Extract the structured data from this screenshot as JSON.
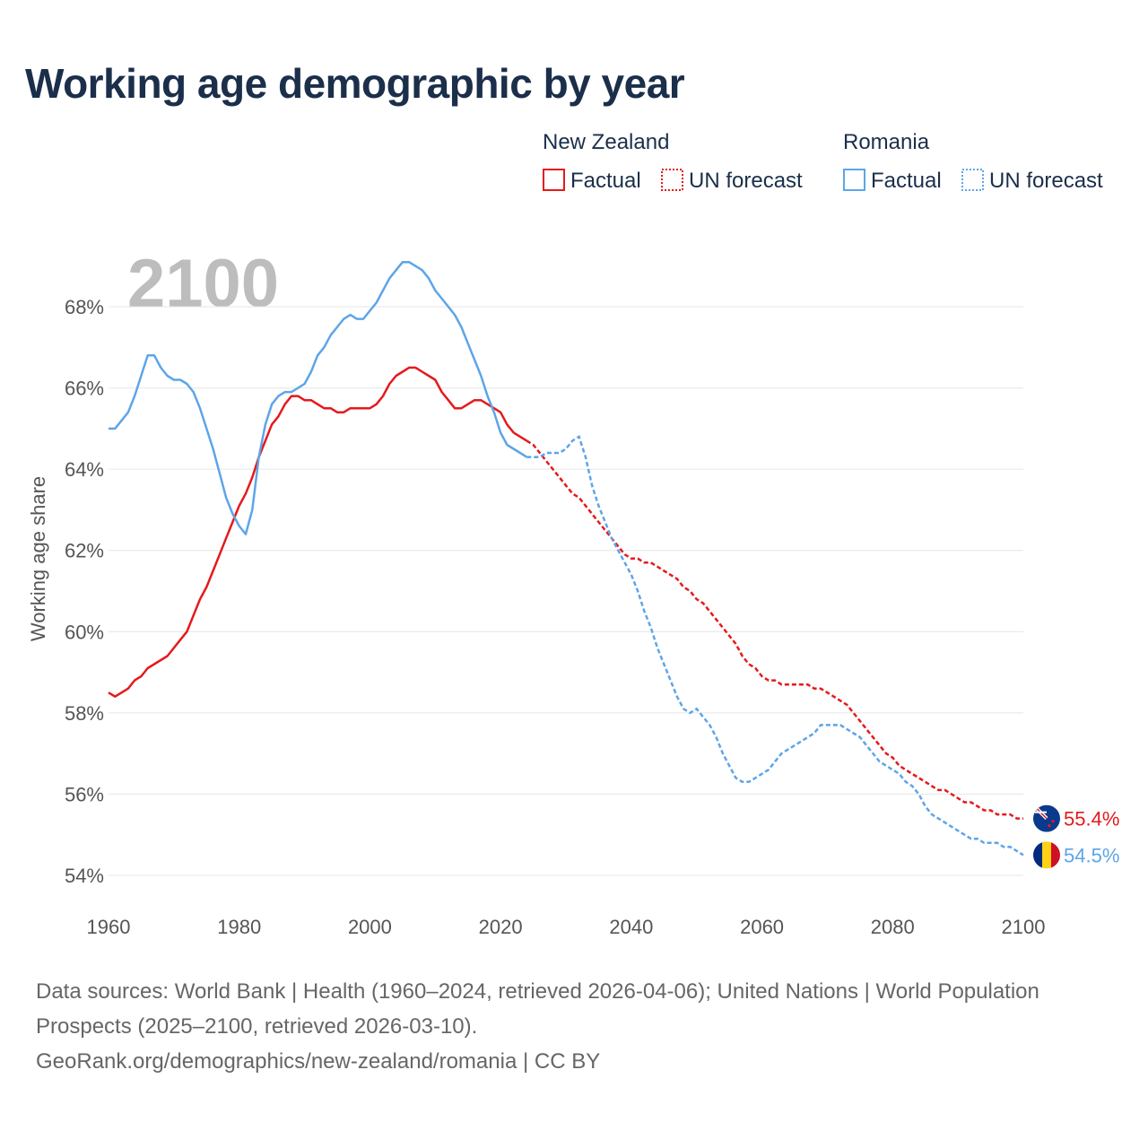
{
  "title": "Working age demographic by year",
  "year_watermark": "2100",
  "footer": {
    "sources": "Data sources: World Bank | Health (1960–2024, retrieved 2026-04-06); United Nations | World Population Prospects (2025–2100, retrieved 2026-03-10).",
    "url": "GeoRank.org/demographics/new-zealand/romania | CC BY"
  },
  "colors": {
    "new_zealand": "#e41a1c",
    "romania": "#5da5e8",
    "grid": "#e6e6e6",
    "watermark": "#bdbdbd"
  },
  "legend": [
    {
      "country": "New Zealand",
      "factual": "Factual",
      "forecast": "UN forecast",
      "color_key": "new_zealand"
    },
    {
      "country": "Romania",
      "factual": "Factual",
      "forecast": "UN forecast",
      "color_key": "romania"
    }
  ],
  "chart_data": {
    "type": "line",
    "title": "Working age demographic by year",
    "xlabel": "",
    "ylabel": "Working age share",
    "xlim": [
      1960,
      2100
    ],
    "ylim": [
      53.5,
      69.5
    ],
    "x_ticks": [
      1960,
      1980,
      2000,
      2020,
      2040,
      2060,
      2080,
      2100
    ],
    "y_ticks": [
      54,
      56,
      58,
      60,
      62,
      64,
      66,
      68
    ],
    "y_tick_labels": [
      "54%",
      "56%",
      "58%",
      "60%",
      "62%",
      "64%",
      "66%",
      "68%"
    ],
    "forecast_start": 2025,
    "series": [
      {
        "name": "New Zealand",
        "color_key": "new_zealand",
        "flag": "new-zealand-flag",
        "end_label": "55.4%",
        "points": [
          [
            1960,
            58.5
          ],
          [
            1961,
            58.4
          ],
          [
            1962,
            58.5
          ],
          [
            1963,
            58.6
          ],
          [
            1964,
            58.8
          ],
          [
            1965,
            58.9
          ],
          [
            1966,
            59.1
          ],
          [
            1967,
            59.2
          ],
          [
            1968,
            59.3
          ],
          [
            1969,
            59.4
          ],
          [
            1970,
            59.6
          ],
          [
            1971,
            59.8
          ],
          [
            1972,
            60.0
          ],
          [
            1973,
            60.4
          ],
          [
            1974,
            60.8
          ],
          [
            1975,
            61.1
          ],
          [
            1976,
            61.5
          ],
          [
            1977,
            61.9
          ],
          [
            1978,
            62.3
          ],
          [
            1979,
            62.7
          ],
          [
            1980,
            63.1
          ],
          [
            1981,
            63.4
          ],
          [
            1982,
            63.8
          ],
          [
            1983,
            64.3
          ],
          [
            1984,
            64.7
          ],
          [
            1985,
            65.1
          ],
          [
            1986,
            65.3
          ],
          [
            1987,
            65.6
          ],
          [
            1988,
            65.8
          ],
          [
            1989,
            65.8
          ],
          [
            1990,
            65.7
          ],
          [
            1991,
            65.7
          ],
          [
            1992,
            65.6
          ],
          [
            1993,
            65.5
          ],
          [
            1994,
            65.5
          ],
          [
            1995,
            65.4
          ],
          [
            1996,
            65.4
          ],
          [
            1997,
            65.5
          ],
          [
            1998,
            65.5
          ],
          [
            1999,
            65.5
          ],
          [
            2000,
            65.5
          ],
          [
            2001,
            65.6
          ],
          [
            2002,
            65.8
          ],
          [
            2003,
            66.1
          ],
          [
            2004,
            66.3
          ],
          [
            2005,
            66.4
          ],
          [
            2006,
            66.5
          ],
          [
            2007,
            66.5
          ],
          [
            2008,
            66.4
          ],
          [
            2009,
            66.3
          ],
          [
            2010,
            66.2
          ],
          [
            2011,
            65.9
          ],
          [
            2012,
            65.7
          ],
          [
            2013,
            65.5
          ],
          [
            2014,
            65.5
          ],
          [
            2015,
            65.6
          ],
          [
            2016,
            65.7
          ],
          [
            2017,
            65.7
          ],
          [
            2018,
            65.6
          ],
          [
            2019,
            65.5
          ],
          [
            2020,
            65.4
          ],
          [
            2021,
            65.1
          ],
          [
            2022,
            64.9
          ],
          [
            2023,
            64.8
          ],
          [
            2024,
            64.7
          ],
          [
            2025,
            64.6
          ],
          [
            2026,
            64.4
          ],
          [
            2027,
            64.2
          ],
          [
            2028,
            64.0
          ],
          [
            2029,
            63.8
          ],
          [
            2030,
            63.6
          ],
          [
            2031,
            63.4
          ],
          [
            2032,
            63.3
          ],
          [
            2033,
            63.1
          ],
          [
            2034,
            62.9
          ],
          [
            2035,
            62.7
          ],
          [
            2036,
            62.5
          ],
          [
            2037,
            62.3
          ],
          [
            2038,
            62.1
          ],
          [
            2039,
            61.9
          ],
          [
            2040,
            61.8
          ],
          [
            2041,
            61.8
          ],
          [
            2042,
            61.7
          ],
          [
            2043,
            61.7
          ],
          [
            2044,
            61.6
          ],
          [
            2045,
            61.5
          ],
          [
            2046,
            61.4
          ],
          [
            2047,
            61.3
          ],
          [
            2048,
            61.1
          ],
          [
            2049,
            61.0
          ],
          [
            2050,
            60.8
          ],
          [
            2051,
            60.7
          ],
          [
            2052,
            60.5
          ],
          [
            2053,
            60.3
          ],
          [
            2054,
            60.1
          ],
          [
            2055,
            59.9
          ],
          [
            2056,
            59.7
          ],
          [
            2057,
            59.4
          ],
          [
            2058,
            59.2
          ],
          [
            2059,
            59.1
          ],
          [
            2060,
            58.9
          ],
          [
            2061,
            58.8
          ],
          [
            2062,
            58.8
          ],
          [
            2063,
            58.7
          ],
          [
            2064,
            58.7
          ],
          [
            2065,
            58.7
          ],
          [
            2066,
            58.7
          ],
          [
            2067,
            58.7
          ],
          [
            2068,
            58.6
          ],
          [
            2069,
            58.6
          ],
          [
            2070,
            58.5
          ],
          [
            2071,
            58.4
          ],
          [
            2072,
            58.3
          ],
          [
            2073,
            58.2
          ],
          [
            2074,
            58.0
          ],
          [
            2075,
            57.8
          ],
          [
            2076,
            57.6
          ],
          [
            2077,
            57.4
          ],
          [
            2078,
            57.2
          ],
          [
            2079,
            57.0
          ],
          [
            2080,
            56.9
          ],
          [
            2081,
            56.7
          ],
          [
            2082,
            56.6
          ],
          [
            2083,
            56.5
          ],
          [
            2084,
            56.4
          ],
          [
            2085,
            56.3
          ],
          [
            2086,
            56.2
          ],
          [
            2087,
            56.1
          ],
          [
            2088,
            56.1
          ],
          [
            2089,
            56.0
          ],
          [
            2090,
            55.9
          ],
          [
            2091,
            55.8
          ],
          [
            2092,
            55.8
          ],
          [
            2093,
            55.7
          ],
          [
            2094,
            55.6
          ],
          [
            2095,
            55.6
          ],
          [
            2096,
            55.5
          ],
          [
            2097,
            55.5
          ],
          [
            2098,
            55.5
          ],
          [
            2099,
            55.4
          ],
          [
            2100,
            55.4
          ]
        ]
      },
      {
        "name": "Romania",
        "color_key": "romania",
        "flag": "romania-flag",
        "end_label": "54.5%",
        "points": [
          [
            1960,
            65.0
          ],
          [
            1961,
            65.0
          ],
          [
            1962,
            65.2
          ],
          [
            1963,
            65.4
          ],
          [
            1964,
            65.8
          ],
          [
            1965,
            66.3
          ],
          [
            1966,
            66.8
          ],
          [
            1967,
            66.8
          ],
          [
            1968,
            66.5
          ],
          [
            1969,
            66.3
          ],
          [
            1970,
            66.2
          ],
          [
            1971,
            66.2
          ],
          [
            1972,
            66.1
          ],
          [
            1973,
            65.9
          ],
          [
            1974,
            65.5
          ],
          [
            1975,
            65.0
          ],
          [
            1976,
            64.5
          ],
          [
            1977,
            63.9
          ],
          [
            1978,
            63.3
          ],
          [
            1979,
            62.9
          ],
          [
            1980,
            62.6
          ],
          [
            1981,
            62.4
          ],
          [
            1982,
            63.0
          ],
          [
            1983,
            64.3
          ],
          [
            1984,
            65.1
          ],
          [
            1985,
            65.6
          ],
          [
            1986,
            65.8
          ],
          [
            1987,
            65.9
          ],
          [
            1988,
            65.9
          ],
          [
            1989,
            66.0
          ],
          [
            1990,
            66.1
          ],
          [
            1991,
            66.4
          ],
          [
            1992,
            66.8
          ],
          [
            1993,
            67.0
          ],
          [
            1994,
            67.3
          ],
          [
            1995,
            67.5
          ],
          [
            1996,
            67.7
          ],
          [
            1997,
            67.8
          ],
          [
            1998,
            67.7
          ],
          [
            1999,
            67.7
          ],
          [
            2000,
            67.9
          ],
          [
            2001,
            68.1
          ],
          [
            2002,
            68.4
          ],
          [
            2003,
            68.7
          ],
          [
            2004,
            68.9
          ],
          [
            2005,
            69.1
          ],
          [
            2006,
            69.1
          ],
          [
            2007,
            69.0
          ],
          [
            2008,
            68.9
          ],
          [
            2009,
            68.7
          ],
          [
            2010,
            68.4
          ],
          [
            2011,
            68.2
          ],
          [
            2012,
            68.0
          ],
          [
            2013,
            67.8
          ],
          [
            2014,
            67.5
          ],
          [
            2015,
            67.1
          ],
          [
            2016,
            66.7
          ],
          [
            2017,
            66.3
          ],
          [
            2018,
            65.8
          ],
          [
            2019,
            65.4
          ],
          [
            2020,
            64.9
          ],
          [
            2021,
            64.6
          ],
          [
            2022,
            64.5
          ],
          [
            2023,
            64.4
          ],
          [
            2024,
            64.3
          ],
          [
            2025,
            64.3
          ],
          [
            2026,
            64.3
          ],
          [
            2027,
            64.4
          ],
          [
            2028,
            64.4
          ],
          [
            2029,
            64.4
          ],
          [
            2030,
            64.5
          ],
          [
            2031,
            64.7
          ],
          [
            2032,
            64.8
          ],
          [
            2033,
            64.3
          ],
          [
            2034,
            63.6
          ],
          [
            2035,
            63.1
          ],
          [
            2036,
            62.7
          ],
          [
            2037,
            62.3
          ],
          [
            2038,
            62.0
          ],
          [
            2039,
            61.7
          ],
          [
            2040,
            61.4
          ],
          [
            2041,
            61.0
          ],
          [
            2042,
            60.5
          ],
          [
            2043,
            60.1
          ],
          [
            2044,
            59.6
          ],
          [
            2045,
            59.2
          ],
          [
            2046,
            58.8
          ],
          [
            2047,
            58.4
          ],
          [
            2048,
            58.1
          ],
          [
            2049,
            58.0
          ],
          [
            2050,
            58.1
          ],
          [
            2051,
            57.9
          ],
          [
            2052,
            57.7
          ],
          [
            2053,
            57.4
          ],
          [
            2054,
            57.0
          ],
          [
            2055,
            56.7
          ],
          [
            2056,
            56.4
          ],
          [
            2057,
            56.3
          ],
          [
            2058,
            56.3
          ],
          [
            2059,
            56.4
          ],
          [
            2060,
            56.5
          ],
          [
            2061,
            56.6
          ],
          [
            2062,
            56.8
          ],
          [
            2063,
            57.0
          ],
          [
            2064,
            57.1
          ],
          [
            2065,
            57.2
          ],
          [
            2066,
            57.3
          ],
          [
            2067,
            57.4
          ],
          [
            2068,
            57.5
          ],
          [
            2069,
            57.7
          ],
          [
            2070,
            57.7
          ],
          [
            2071,
            57.7
          ],
          [
            2072,
            57.7
          ],
          [
            2073,
            57.6
          ],
          [
            2074,
            57.5
          ],
          [
            2075,
            57.4
          ],
          [
            2076,
            57.2
          ],
          [
            2077,
            57.0
          ],
          [
            2078,
            56.8
          ],
          [
            2079,
            56.7
          ],
          [
            2080,
            56.6
          ],
          [
            2081,
            56.5
          ],
          [
            2082,
            56.3
          ],
          [
            2083,
            56.2
          ],
          [
            2084,
            56.0
          ],
          [
            2085,
            55.7
          ],
          [
            2086,
            55.5
          ],
          [
            2087,
            55.4
          ],
          [
            2088,
            55.3
          ],
          [
            2089,
            55.2
          ],
          [
            2090,
            55.1
          ],
          [
            2091,
            55.0
          ],
          [
            2092,
            54.9
          ],
          [
            2093,
            54.9
          ],
          [
            2094,
            54.8
          ],
          [
            2095,
            54.8
          ],
          [
            2096,
            54.8
          ],
          [
            2097,
            54.7
          ],
          [
            2098,
            54.7
          ],
          [
            2099,
            54.6
          ],
          [
            2100,
            54.5
          ]
        ]
      }
    ]
  }
}
